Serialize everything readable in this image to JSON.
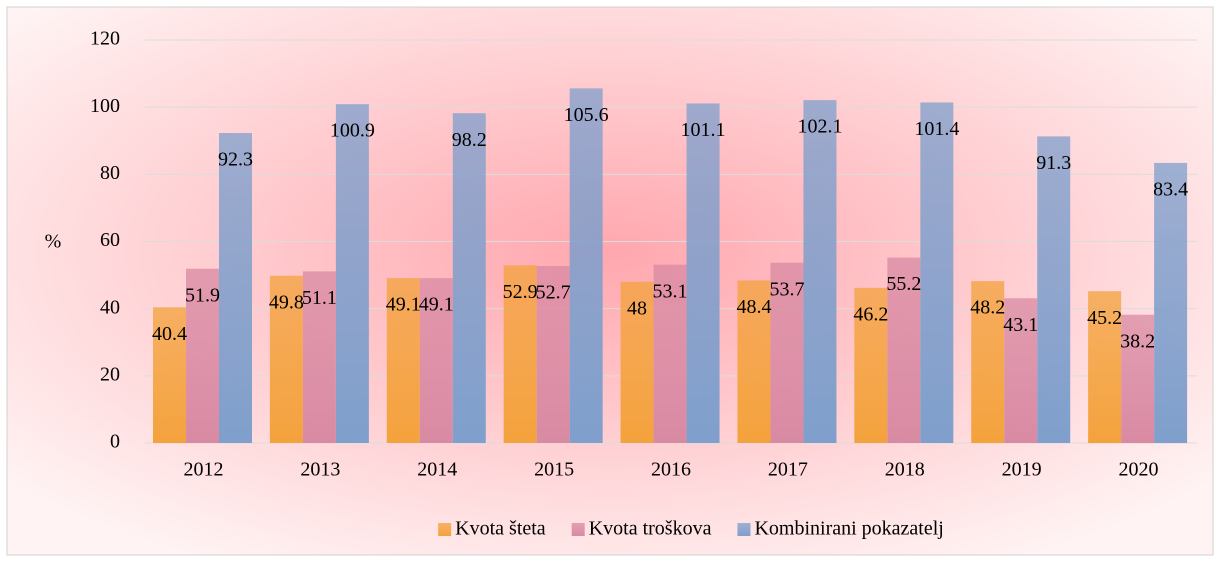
{
  "chart_data": {
    "type": "bar",
    "ylabel": "%",
    "categories": [
      "2012",
      "2013",
      "2014",
      "2015",
      "2016",
      "2017",
      "2018",
      "2019",
      "2020"
    ],
    "series": [
      {
        "name": "Kvota šteta",
        "color": "#f4a23c",
        "values": [
          40.4,
          49.8,
          49.1,
          52.9,
          48,
          48.4,
          46.2,
          48.2,
          45.2
        ]
      },
      {
        "name": "Kvota troškova",
        "color": "#d98aa3",
        "values": [
          51.9,
          51.1,
          49.1,
          52.7,
          53.1,
          53.7,
          55.2,
          43.1,
          38.2
        ]
      },
      {
        "name": "Kombinirani pokazatelj",
        "color": "#7f9fcc",
        "values": [
          92.3,
          100.9,
          98.2,
          105.6,
          101.1,
          102.1,
          101.4,
          91.3,
          83.4
        ]
      }
    ],
    "ylim": [
      0,
      120
    ],
    "yticks": [
      0,
      20,
      40,
      60,
      80,
      100,
      120
    ],
    "grid": true,
    "legend": "bottom"
  }
}
